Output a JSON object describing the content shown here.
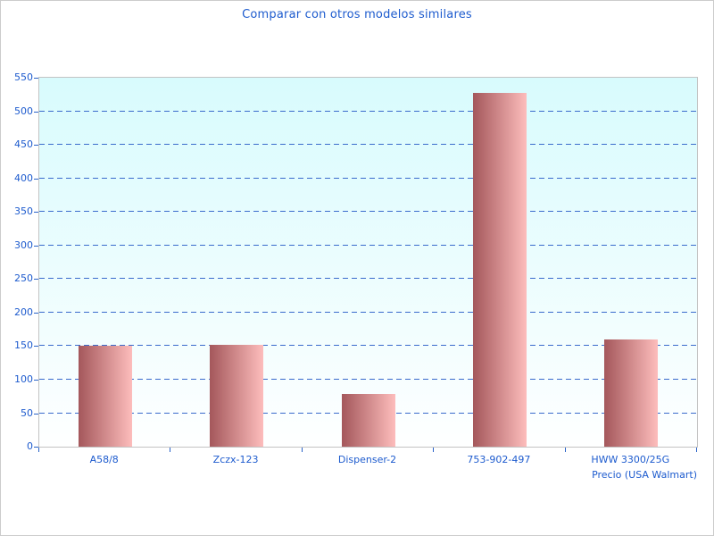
{
  "chart_data": {
    "type": "bar",
    "title": "Comparar con otros modelos similares",
    "categories": [
      "A58/8",
      "Zczx-123",
      "Dispenser-2",
      "753-902-497",
      "HWW 3300/25G"
    ],
    "values": [
      150,
      152,
      78,
      527,
      160
    ],
    "xlabel": "Precio (USA Walmart)",
    "ylabel": "",
    "ylim": [
      0,
      550
    ],
    "ytick_step": 50,
    "grid": "horizontal-dashed",
    "legend_position": "none"
  },
  "colors": {
    "title_text": "#1d5bce",
    "axis_text": "#1d5bce",
    "gridline": "#3a6bcc",
    "tick_mark": "#2a63c8",
    "bar_gradient_left": "#a4575b",
    "bar_gradient_right": "#fdbdbc",
    "plot_bg_top": "#d8fbfd",
    "plot_bg_bottom": "#feffff",
    "plot_border": "#c3c3c3",
    "frame_border": "#cccccc",
    "frame_bg": "#ffffff"
  }
}
